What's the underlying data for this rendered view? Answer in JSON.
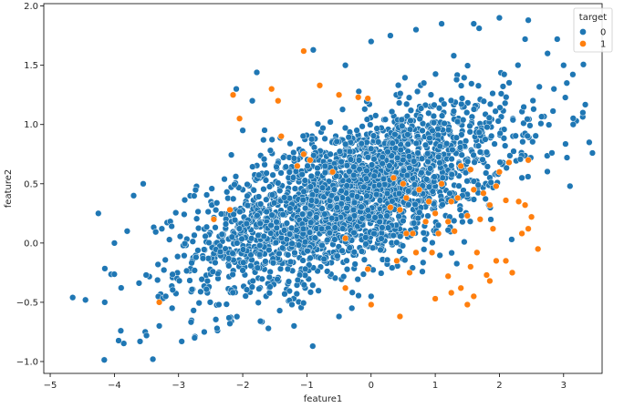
{
  "chart_data": {
    "type": "scatter",
    "title": "",
    "xlabel": "feature1",
    "ylabel": "feature2",
    "xlim": [
      -5.1,
      3.6
    ],
    "ylim": [
      -1.1,
      2.02
    ],
    "xticks": [
      -5,
      -4,
      -3,
      -2,
      -1,
      0,
      1,
      2,
      3
    ],
    "yticks": [
      -1.0,
      -0.5,
      0.0,
      0.5,
      1.0,
      1.5,
      2.0
    ],
    "xtick_labels": [
      "−5",
      "−4",
      "−3",
      "−2",
      "−1",
      "0",
      "1",
      "2",
      "3"
    ],
    "ytick_labels": [
      "−1.0",
      "−0.5",
      "0.0",
      "0.5",
      "1.0",
      "1.5",
      "2.0"
    ],
    "grid": false,
    "legend": {
      "title": "target",
      "placement": "top-right",
      "entries": [
        "0",
        "1"
      ]
    },
    "series": [
      {
        "name": "0",
        "color": "#1f77b4",
        "distribution": {
          "count": 2600,
          "mean": [
            -0.3,
            0.4
          ],
          "std": [
            1.2,
            0.38
          ],
          "correlation": 0.62
        },
        "points": [
          [
            -4.65,
            -0.46
          ],
          [
            -4.45,
            -0.48
          ],
          [
            -4.25,
            0.25
          ],
          [
            -4.15,
            -0.5
          ],
          [
            -4.0,
            0.0
          ],
          [
            -3.9,
            -0.74
          ],
          [
            -3.6,
            -0.83
          ],
          [
            -3.5,
            -0.78
          ],
          [
            -3.4,
            -0.98
          ],
          [
            -3.55,
            0.5
          ],
          [
            -3.7,
            0.4
          ],
          [
            -3.8,
            0.1
          ],
          [
            -3.3,
            -0.7
          ],
          [
            -2.95,
            -0.83
          ],
          [
            -2.75,
            -0.8
          ],
          [
            -2.6,
            -0.75
          ],
          [
            -2.2,
            -0.68
          ],
          [
            -2.0,
            0.95
          ],
          [
            -1.78,
            1.44
          ],
          [
            -1.85,
            1.2
          ],
          [
            -2.1,
            1.3
          ],
          [
            -0.9,
            1.63
          ],
          [
            -0.4,
            1.5
          ],
          [
            0.0,
            1.7
          ],
          [
            0.3,
            1.75
          ],
          [
            0.7,
            1.8
          ],
          [
            1.1,
            1.85
          ],
          [
            1.6,
            1.85
          ],
          [
            2.0,
            1.9
          ],
          [
            2.45,
            1.88
          ],
          [
            2.4,
            1.72
          ],
          [
            2.75,
            1.6
          ],
          [
            2.9,
            1.72
          ],
          [
            3.0,
            1.5
          ],
          [
            3.05,
            1.35
          ],
          [
            2.85,
            1.3
          ],
          [
            3.3,
            1.1
          ],
          [
            3.15,
            1.0
          ],
          [
            3.4,
            0.85
          ],
          [
            3.45,
            0.76
          ],
          [
            3.1,
            0.48
          ],
          [
            2.35,
            0.55
          ],
          [
            -0.5,
            -0.62
          ],
          [
            -0.3,
            -0.55
          ],
          [
            0.0,
            -0.45
          ],
          [
            -1.2,
            -0.7
          ],
          [
            -1.6,
            -0.72
          ],
          [
            -2.4,
            -0.72
          ],
          [
            -3.1,
            -0.55
          ],
          [
            -3.2,
            -0.45
          ]
        ]
      },
      {
        "name": "1",
        "color": "#ff7f0e",
        "points": [
          [
            -1.05,
            1.62
          ],
          [
            -0.8,
            1.33
          ],
          [
            -0.5,
            1.25
          ],
          [
            -0.2,
            1.23
          ],
          [
            -0.05,
            1.22
          ],
          [
            -1.55,
            1.3
          ],
          [
            -1.45,
            1.2
          ],
          [
            -2.15,
            1.25
          ],
          [
            -2.05,
            1.05
          ],
          [
            -1.4,
            0.9
          ],
          [
            -1.05,
            0.75
          ],
          [
            -1.15,
            0.65
          ],
          [
            -0.95,
            0.7
          ],
          [
            -0.6,
            0.6
          ],
          [
            -2.2,
            0.28
          ],
          [
            -2.45,
            0.2
          ],
          [
            -3.3,
            -0.5
          ],
          [
            -0.4,
            0.04
          ],
          [
            -0.05,
            -0.22
          ],
          [
            -0.4,
            -0.38
          ],
          [
            0.0,
            -0.52
          ],
          [
            0.45,
            -0.62
          ],
          [
            0.4,
            -0.15
          ],
          [
            0.6,
            -0.25
          ],
          [
            0.35,
            0.55
          ],
          [
            0.5,
            0.5
          ],
          [
            0.55,
            0.38
          ],
          [
            0.7,
            -0.08
          ],
          [
            0.65,
            0.08
          ],
          [
            0.95,
            -0.08
          ],
          [
            1.0,
            -0.47
          ],
          [
            1.2,
            -0.28
          ],
          [
            1.25,
            -0.42
          ],
          [
            1.4,
            -0.38
          ],
          [
            1.5,
            -0.52
          ],
          [
            1.6,
            -0.45
          ],
          [
            1.55,
            -0.2
          ],
          [
            1.65,
            -0.08
          ],
          [
            1.8,
            -0.27
          ],
          [
            1.85,
            -0.32
          ],
          [
            1.95,
            -0.15
          ],
          [
            2.1,
            -0.15
          ],
          [
            2.2,
            -0.25
          ],
          [
            2.35,
            0.08
          ],
          [
            2.45,
            0.12
          ],
          [
            2.5,
            0.22
          ],
          [
            2.6,
            -0.05
          ],
          [
            2.4,
            0.32
          ],
          [
            2.3,
            0.35
          ],
          [
            2.1,
            0.36
          ],
          [
            1.85,
            0.32
          ],
          [
            1.75,
            0.42
          ],
          [
            1.6,
            0.45
          ],
          [
            1.35,
            0.38
          ],
          [
            1.25,
            0.35
          ],
          [
            1.0,
            0.25
          ],
          [
            0.85,
            0.18
          ],
          [
            1.05,
            0.08
          ],
          [
            1.3,
            0.1
          ],
          [
            1.5,
            0.23
          ],
          [
            1.7,
            0.2
          ],
          [
            1.9,
            0.12
          ],
          [
            2.0,
            0.6
          ],
          [
            1.95,
            0.48
          ],
          [
            2.15,
            0.68
          ],
          [
            2.45,
            0.7
          ],
          [
            1.4,
            0.65
          ],
          [
            0.55,
            0.08
          ],
          [
            0.3,
            0.3
          ],
          [
            0.75,
            0.45
          ],
          [
            1.1,
            0.5
          ],
          [
            1.2,
            0.18
          ],
          [
            0.45,
            0.28
          ],
          [
            1.55,
            0.62
          ],
          [
            0.9,
            0.35
          ]
        ]
      }
    ]
  }
}
